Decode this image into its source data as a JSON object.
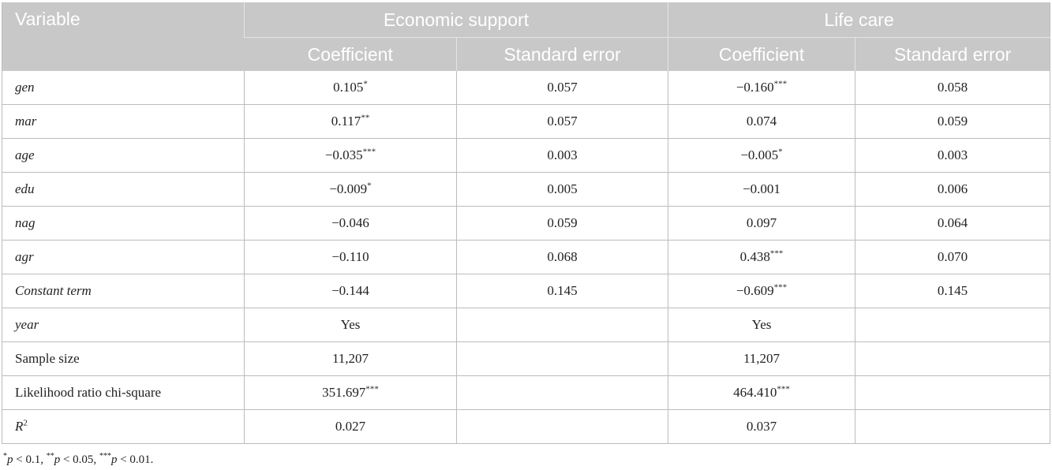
{
  "table": {
    "header": {
      "variable": "Variable",
      "group1": "Economic support",
      "group2": "Life care",
      "coef": "Coefficient",
      "se": "Standard error"
    },
    "rows": [
      {
        "label": "gen",
        "italic": true,
        "es_coef": "0.105",
        "es_coef_sig": "*",
        "es_se": "0.057",
        "lc_coef": "−0.160",
        "lc_coef_sig": "***",
        "lc_se": "0.058"
      },
      {
        "label": "mar",
        "italic": true,
        "es_coef": "0.117",
        "es_coef_sig": "**",
        "es_se": "0.057",
        "lc_coef": "0.074",
        "lc_coef_sig": "",
        "lc_se": "0.059"
      },
      {
        "label": "age",
        "italic": true,
        "es_coef": "−0.035",
        "es_coef_sig": "***",
        "es_se": "0.003",
        "lc_coef": "−0.005",
        "lc_coef_sig": "*",
        "lc_se": "0.003"
      },
      {
        "label": "edu",
        "italic": true,
        "es_coef": "−0.009",
        "es_coef_sig": "*",
        "es_se": "0.005",
        "lc_coef": "−0.001",
        "lc_coef_sig": "",
        "lc_se": "0.006"
      },
      {
        "label": "nag",
        "italic": true,
        "es_coef": "−0.046",
        "es_coef_sig": "",
        "es_se": "0.059",
        "lc_coef": "0.097",
        "lc_coef_sig": "",
        "lc_se": "0.064"
      },
      {
        "label": "agr",
        "italic": true,
        "es_coef": "−0.110",
        "es_coef_sig": "",
        "es_se": "0.068",
        "lc_coef": "0.438",
        "lc_coef_sig": "***",
        "lc_se": "0.070"
      },
      {
        "label": "Constant term",
        "italic": true,
        "es_coef": "−0.144",
        "es_coef_sig": "",
        "es_se": "0.145",
        "lc_coef": "−0.609",
        "lc_coef_sig": "***",
        "lc_se": "0.145"
      },
      {
        "label": "year",
        "italic": true,
        "es_coef": "Yes",
        "es_coef_sig": "",
        "es_se": "",
        "lc_coef": "Yes",
        "lc_coef_sig": "",
        "lc_se": ""
      },
      {
        "label": "Sample size",
        "italic": false,
        "es_coef": "11,207",
        "es_coef_sig": "",
        "es_se": "",
        "lc_coef": "11,207",
        "lc_coef_sig": "",
        "lc_se": ""
      },
      {
        "label": "Likelihood ratio chi-square",
        "italic": false,
        "es_coef": "351.697",
        "es_coef_sig": "***",
        "es_se": "",
        "lc_coef": "464.410",
        "lc_coef_sig": "***",
        "lc_se": ""
      }
    ],
    "r2_row": {
      "label": "R",
      "label_sup": "2",
      "es_coef": "0.027",
      "es_se": "",
      "lc_coef": "0.037",
      "lc_se": ""
    }
  },
  "footnote": {
    "m1": "*",
    "v1": "p",
    "t1": " < 0.1, ",
    "m2": "**",
    "v2": "p",
    "t2": " < 0.05, ",
    "m3": "***",
    "v3": "p",
    "t3": " < 0.01."
  }
}
